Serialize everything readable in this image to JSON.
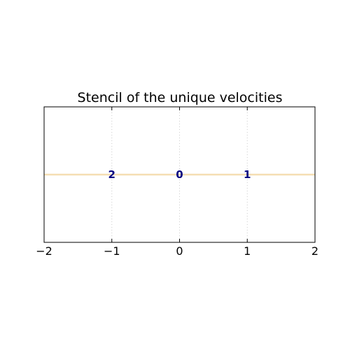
{
  "chart_data": {
    "type": "scatter",
    "title": "Stencil of the unique velocities",
    "xlabel": "",
    "ylabel": "",
    "xlim": [
      -2,
      2
    ],
    "ylim": [
      -1,
      1
    ],
    "xticks": [
      -2,
      -1,
      0,
      1,
      2
    ],
    "xtick_labels": [
      "−2",
      "−1",
      "0",
      "1",
      "2"
    ],
    "yticks": [],
    "grid": "vertical dotted lines at x = -1, 0, 1",
    "horizontal_line": {
      "y": 0,
      "color": "#f5deb3"
    },
    "points": [
      {
        "label": "2",
        "x": -1,
        "y": 0
      },
      {
        "label": "0",
        "x": 0,
        "y": 0
      },
      {
        "label": "1",
        "x": 1,
        "y": 0
      }
    ],
    "label_color": "#000080",
    "axes_color": "#000000",
    "grid_color": "#cccccc"
  }
}
